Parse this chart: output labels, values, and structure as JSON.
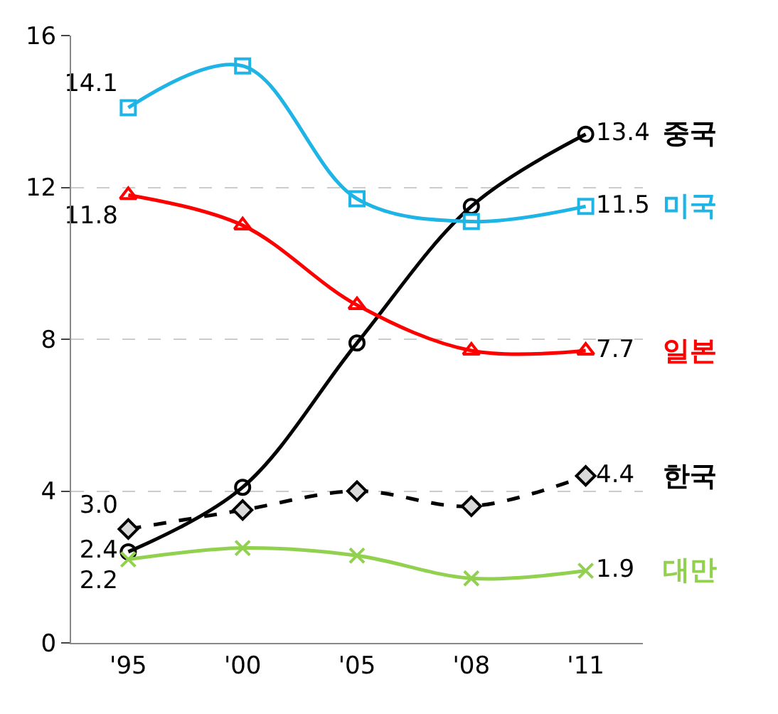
{
  "chart_data": {
    "type": "line",
    "categories": [
      "'95",
      "'00",
      "'05",
      "'08",
      "'11"
    ],
    "series": [
      {
        "name": "중국",
        "color": "#000000",
        "marker": "circle",
        "line_style": "solid",
        "values": [
          2.4,
          4.1,
          7.9,
          11.5,
          13.4
        ],
        "value_labels": [
          "2.4",
          null,
          null,
          null,
          "13.4"
        ]
      },
      {
        "name": "미국",
        "color": "#1eb4e6",
        "marker": "square",
        "line_style": "solid",
        "values": [
          14.1,
          15.2,
          11.7,
          11.1,
          11.5
        ],
        "value_labels": [
          "14.1",
          null,
          null,
          null,
          "11.5"
        ]
      },
      {
        "name": "일본",
        "color": "#ff0000",
        "marker": "triangle",
        "line_style": "solid",
        "values": [
          11.8,
          11.0,
          8.9,
          7.7,
          7.7
        ],
        "value_labels": [
          "11.8",
          null,
          null,
          null,
          "7.7"
        ]
      },
      {
        "name": "한국",
        "color": "#000000",
        "marker": "diamond",
        "line_style": "dashed",
        "values": [
          3.0,
          3.5,
          4.0,
          3.6,
          4.4
        ],
        "value_labels": [
          "3.0",
          null,
          null,
          null,
          "4.4"
        ]
      },
      {
        "name": "대만",
        "color": "#92d050",
        "marker": "cross",
        "line_style": "solid",
        "values": [
          2.2,
          2.5,
          2.3,
          1.7,
          1.9
        ],
        "value_labels": [
          "2.2",
          null,
          null,
          null,
          "1.9"
        ]
      }
    ],
    "ylim": [
      0,
      16
    ],
    "yticks": [
      0,
      4,
      8,
      12,
      16
    ],
    "grid": "y"
  }
}
